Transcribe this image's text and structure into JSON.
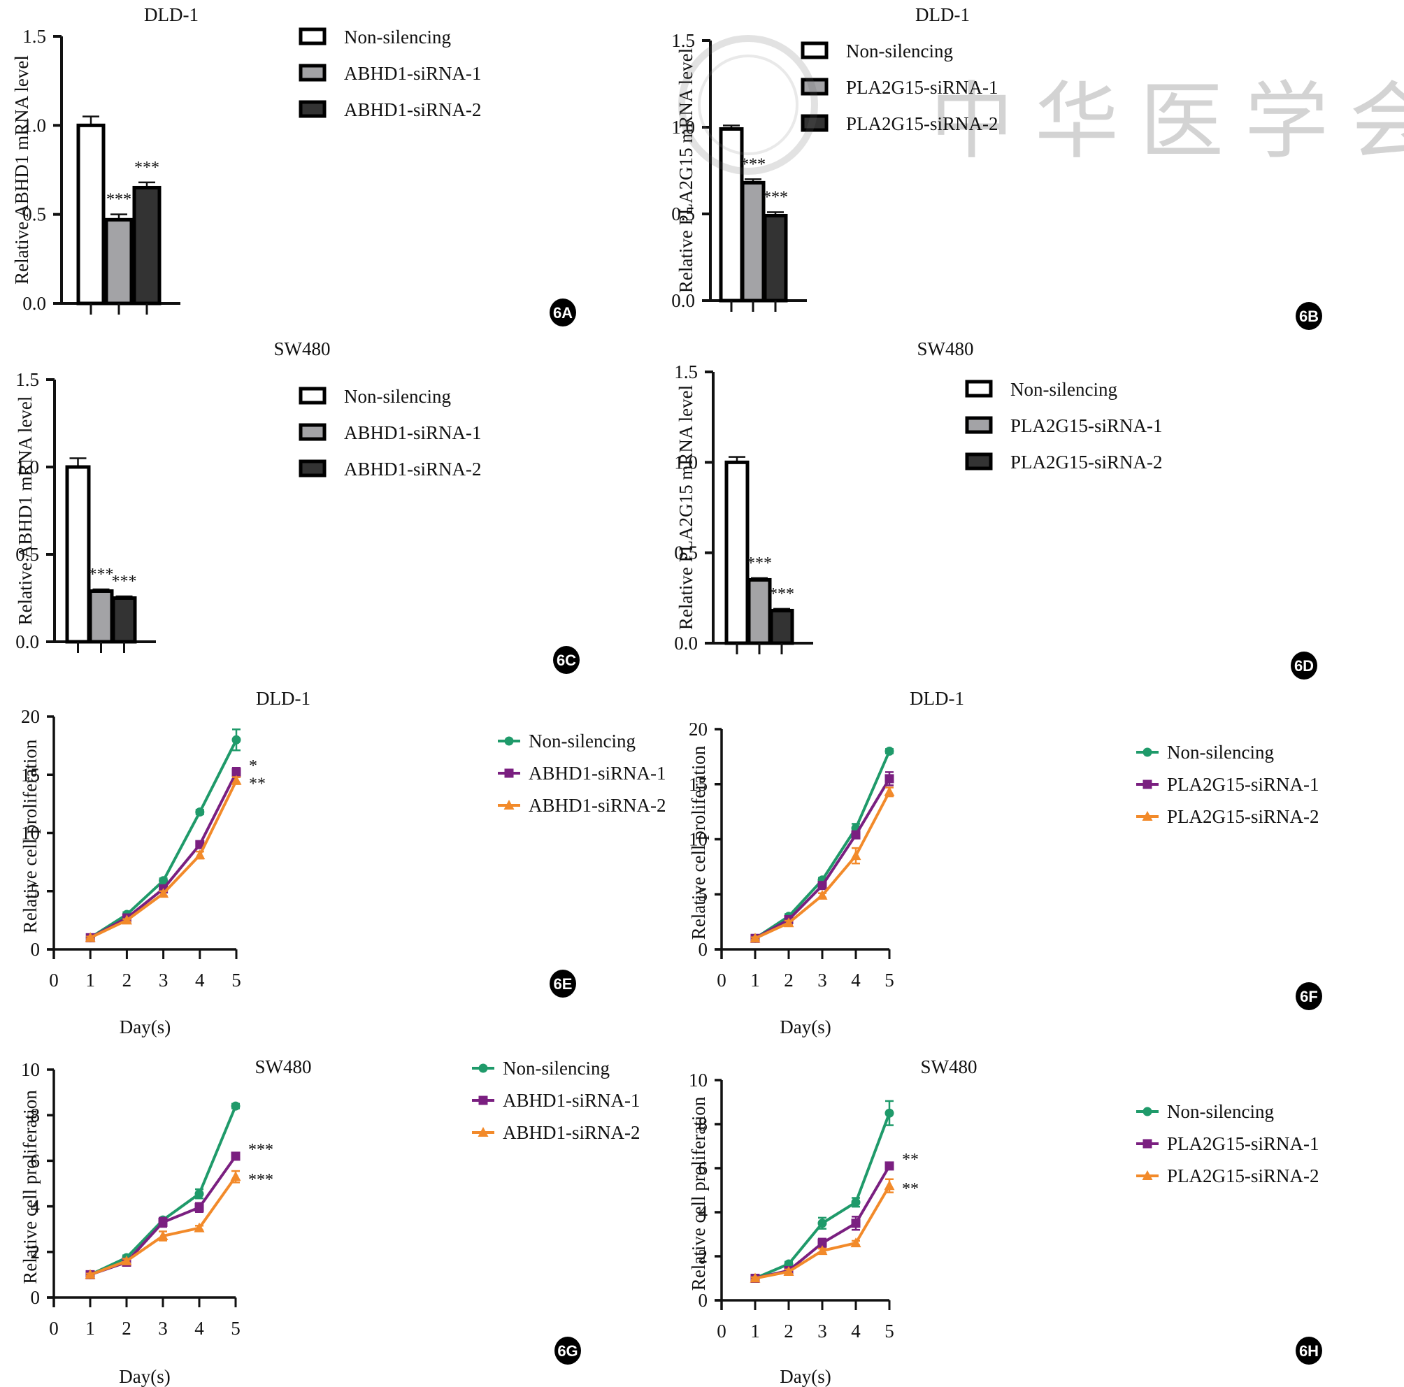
{
  "figure": {
    "watermark_text": "中华医学会",
    "panels_order": [
      "6A",
      "6B",
      "6C",
      "6D",
      "6E",
      "6F",
      "6G",
      "6H"
    ]
  },
  "colors": {
    "non_silencing_bar": "#ffffff",
    "sirna1_bar": "#a3a3a6",
    "sirna2_bar": "#333333",
    "non_silencing_line": "#1f9a6a",
    "sirna1_line": "#7a1f80",
    "sirna2_line": "#f28a2a",
    "axis": "#111111"
  },
  "chart_data": [
    {
      "id": "6A",
      "type": "bar",
      "title": "DLD-1",
      "ylabel": "Relative ABHD1 mRNA level",
      "xlabel": "",
      "ylim": [
        0,
        1.5
      ],
      "yticks": [
        "0.0",
        "0.5",
        "1.0",
        "1.5"
      ],
      "legend": [
        "Non-silencing",
        "ABHD1-siRNA-1",
        "ABHD1-siRNA-2"
      ],
      "legend_position": "top-right",
      "values": [
        1.0,
        0.47,
        0.65
      ],
      "errors": [
        0.05,
        0.03,
        0.03
      ],
      "annotations": [
        "",
        "***",
        "***"
      ],
      "panel_label": "6A"
    },
    {
      "id": "6B",
      "type": "bar",
      "title": "DLD-1",
      "ylabel": "Relative PLA2G15 mRNA level",
      "xlabel": "",
      "ylim": [
        0,
        1.5
      ],
      "yticks": [
        "0.0",
        "0.5",
        "1.0",
        "1.5"
      ],
      "legend": [
        "Non-silencing",
        "PLA2G15-siRNA-1",
        "PLA2G15-siRNA-2"
      ],
      "legend_position": "top-right",
      "values": [
        0.99,
        0.68,
        0.49
      ],
      "errors": [
        0.02,
        0.02,
        0.02
      ],
      "annotations": [
        "",
        "***",
        "***"
      ],
      "panel_label": "6B"
    },
    {
      "id": "6C",
      "type": "bar",
      "title": "SW480",
      "ylabel": "Relative ABHD1 mRNA level",
      "xlabel": "",
      "ylim": [
        0,
        1.5
      ],
      "yticks": [
        "0.0",
        "0.5",
        "1.0",
        "1.5"
      ],
      "legend": [
        "Non-silencing",
        "ABHD1-siRNA-1",
        "ABHD1-siRNA-2"
      ],
      "legend_position": "top-right",
      "values": [
        1.0,
        0.29,
        0.25
      ],
      "errors": [
        0.05,
        0.01,
        0.01
      ],
      "annotations": [
        "",
        "***",
        "***"
      ],
      "panel_label": "6C"
    },
    {
      "id": "6D",
      "type": "bar",
      "title": "SW480",
      "ylabel": "Relative PLA2G15 mRNA level",
      "xlabel": "",
      "ylim": [
        0,
        1.5
      ],
      "yticks": [
        "0.0",
        "0.5",
        "1.0",
        "1.5"
      ],
      "legend": [
        "Non-silencing",
        "PLA2G15-siRNA-1",
        "PLA2G15-siRNA-2"
      ],
      "legend_position": "top-right",
      "values": [
        1.0,
        0.35,
        0.18
      ],
      "errors": [
        0.03,
        0.01,
        0.01
      ],
      "annotations": [
        "",
        "***",
        "***"
      ],
      "panel_label": "6D"
    },
    {
      "id": "6E",
      "type": "line",
      "title": "DLD-1",
      "ylabel": "Relative cell proliferation",
      "xlabel": "Day(s)",
      "x": [
        1,
        2,
        3,
        4,
        5
      ],
      "xlim": [
        0,
        5
      ],
      "xticks": [
        "0",
        "1",
        "2",
        "3",
        "4",
        "5"
      ],
      "ylim": [
        0,
        20
      ],
      "yticks": [
        "0",
        "5",
        "10",
        "15",
        "20"
      ],
      "legend_position": "top-right",
      "series": [
        {
          "name": "Non-silencing",
          "marker": "circle",
          "values": [
            1.0,
            3.0,
            5.9,
            11.8,
            18.0
          ],
          "errors": [
            0.1,
            0.2,
            0.2,
            0.2,
            0.9
          ]
        },
        {
          "name": "ABHD1-siRNA-1",
          "marker": "square",
          "values": [
            1.0,
            2.7,
            5.2,
            9.0,
            15.2
          ],
          "errors": [
            0.1,
            0.2,
            0.2,
            0.3,
            0.4
          ]
        },
        {
          "name": "ABHD1-siRNA-2",
          "marker": "triangle",
          "values": [
            1.0,
            2.5,
            4.8,
            8.1,
            14.5
          ],
          "errors": [
            0.1,
            0.1,
            0.2,
            0.3,
            0.3
          ]
        }
      ],
      "annotations": [
        "*",
        "**"
      ],
      "panel_label": "6E"
    },
    {
      "id": "6F",
      "type": "line",
      "title": "DLD-1",
      "ylabel": "Relative cell proliferation",
      "xlabel": "Day(s)",
      "x": [
        1,
        2,
        3,
        4,
        5
      ],
      "xlim": [
        0,
        5
      ],
      "xticks": [
        "0",
        "1",
        "2",
        "3",
        "4",
        "5"
      ],
      "ylim": [
        0,
        20
      ],
      "yticks": [
        "0",
        "5",
        "10",
        "15",
        "20"
      ],
      "legend_position": "top-right",
      "series": [
        {
          "name": "Non-silencing",
          "marker": "circle",
          "values": [
            1.0,
            3.0,
            6.3,
            11.0,
            18.0
          ],
          "errors": [
            0.1,
            0.2,
            0.2,
            0.4,
            0.2
          ]
        },
        {
          "name": "PLA2G15-siRNA-1",
          "marker": "square",
          "values": [
            1.0,
            2.7,
            5.8,
            10.4,
            15.5
          ],
          "errors": [
            0.1,
            0.2,
            0.3,
            0.3,
            0.6
          ]
        },
        {
          "name": "PLA2G15-siRNA-2",
          "marker": "triangle",
          "values": [
            1.0,
            2.4,
            4.9,
            8.5,
            14.3
          ],
          "errors": [
            0.1,
            0.2,
            0.2,
            0.7,
            0.4
          ]
        }
      ],
      "annotations": [],
      "panel_label": "6F"
    },
    {
      "id": "6G",
      "type": "line",
      "title": "SW480",
      "ylabel": "Relative cell proliferation",
      "xlabel": "Day(s)",
      "x": [
        1,
        2,
        3,
        4,
        5
      ],
      "xlim": [
        0,
        5
      ],
      "xticks": [
        "0",
        "1",
        "2",
        "3",
        "4",
        "5"
      ],
      "ylim": [
        0,
        10
      ],
      "yticks": [
        "0",
        "2",
        "4",
        "6",
        "8",
        "10"
      ],
      "legend_position": "top-right",
      "series": [
        {
          "name": "Non-silencing",
          "marker": "circle",
          "values": [
            1.0,
            1.75,
            3.4,
            4.55,
            8.4
          ],
          "errors": [
            0.05,
            0.1,
            0.1,
            0.2,
            0.1
          ]
        },
        {
          "name": "ABHD1-siRNA-1",
          "marker": "square",
          "values": [
            1.0,
            1.55,
            3.3,
            3.95,
            6.2
          ],
          "errors": [
            0.05,
            0.1,
            0.2,
            0.2,
            0.1
          ]
        },
        {
          "name": "ABHD1-siRNA-2",
          "marker": "triangle",
          "values": [
            1.0,
            1.6,
            2.7,
            3.05,
            5.3
          ],
          "errors": [
            0.05,
            0.1,
            0.2,
            0.1,
            0.25
          ]
        }
      ],
      "annotations": [
        "***",
        "***"
      ],
      "panel_label": "6G"
    },
    {
      "id": "6H",
      "type": "line",
      "title": "SW480",
      "ylabel": "Relative cell proliferation",
      "xlabel": "Day(s)",
      "x": [
        1,
        2,
        3,
        4,
        5
      ],
      "xlim": [
        0,
        5
      ],
      "xticks": [
        "0",
        "1",
        "2",
        "3",
        "4",
        "5"
      ],
      "ylim": [
        0,
        10
      ],
      "yticks": [
        "0",
        "2",
        "4",
        "6",
        "8",
        "10"
      ],
      "legend_position": "top-right",
      "series": [
        {
          "name": "Non-silencing",
          "marker": "circle",
          "values": [
            1.0,
            1.65,
            3.5,
            4.45,
            8.5
          ],
          "errors": [
            0.05,
            0.1,
            0.25,
            0.2,
            0.55
          ]
        },
        {
          "name": "PLA2G15-siRNA-1",
          "marker": "square",
          "values": [
            1.0,
            1.35,
            2.6,
            3.5,
            6.1
          ],
          "errors": [
            0.05,
            0.1,
            0.2,
            0.3,
            0.15
          ]
        },
        {
          "name": "PLA2G15-siRNA-2",
          "marker": "triangle",
          "values": [
            1.0,
            1.3,
            2.25,
            2.6,
            5.2
          ],
          "errors": [
            0.05,
            0.1,
            0.1,
            0.1,
            0.3
          ]
        }
      ],
      "annotations": [
        "**",
        "**"
      ],
      "panel_label": "6H"
    }
  ]
}
